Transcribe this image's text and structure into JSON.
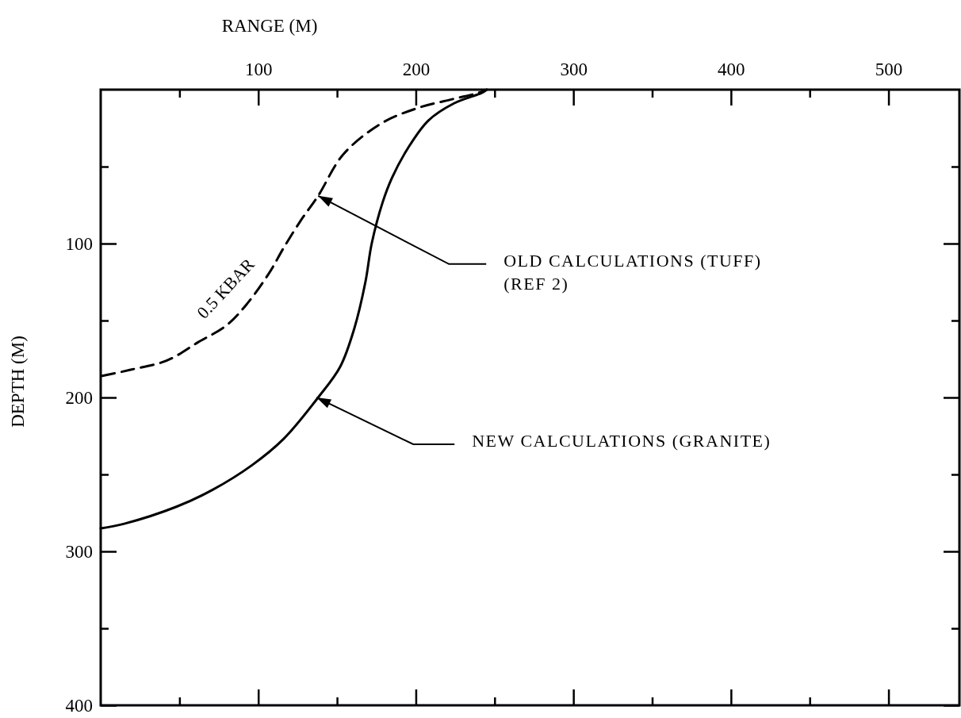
{
  "chart_data": {
    "type": "line",
    "xlabel": "RANGE (M)",
    "ylabel": "DEPTH (M)",
    "xlim": [
      0,
      545
    ],
    "ylim": [
      400,
      0
    ],
    "xticks": [
      {
        "value": 50,
        "label": null
      },
      100,
      {
        "value": 150,
        "label": null
      },
      200,
      {
        "value": 250,
        "label": null
      },
      300,
      {
        "value": 350,
        "label": null
      },
      400,
      {
        "value": 450,
        "label": null
      },
      500
    ],
    "yticks": [
      {
        "value": 50,
        "label": null
      },
      100,
      {
        "value": 150,
        "label": null
      },
      200,
      {
        "value": 250,
        "label": null
      },
      300,
      {
        "value": 350,
        "label": null
      },
      400
    ],
    "grid": false,
    "marker": "none",
    "series": [
      {
        "color": "#000000",
        "line_style": "dashed",
        "x": [
          1,
          19,
          42,
          62,
          80,
          93,
          107,
          116,
          127,
          138,
          154,
          178,
          201,
          224,
          240,
          245
        ],
        "values": [
          186,
          182,
          176,
          164,
          153,
          139,
          119,
          103,
          85,
          69,
          42,
          22,
          12,
          6,
          2,
          0
        ]
      },
      {
        "color": "#000000",
        "line_style": "solid",
        "x": [
          0,
          15,
          48,
          71,
          96,
          116,
          138,
          152,
          161,
          168,
          172,
          179,
          185,
          195,
          208,
          224,
          242,
          245
        ],
        "values": [
          285,
          282,
          271,
          260,
          244,
          227,
          200,
          180,
          155,
          125,
          100,
          73,
          57,
          38,
          20,
          9,
          2,
          0
        ]
      }
    ],
    "annotations": [
      "0.5 KBAR",
      {
        "text": "OLD CALCULATIONS (TUFF)\n(REF 2)",
        "x": 138,
        "y": 69
      },
      {
        "text": "NEW CALCULATIONS (GRANITE)",
        "x": 137,
        "y": 200
      }
    ]
  }
}
